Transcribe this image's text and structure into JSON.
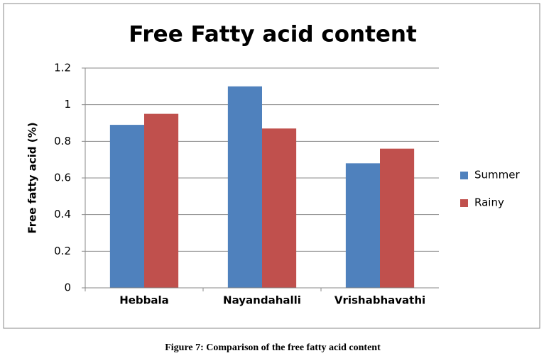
{
  "chart_data": {
    "type": "bar",
    "title": "Free Fatty acid content",
    "y_label": "Free fatty acid (%)",
    "categories": [
      "Hebbala",
      "Nayandahalli",
      "Vrishabhavathi"
    ],
    "series": [
      {
        "name": "Summer",
        "color": "#4f81bd",
        "values": [
          0.89,
          1.1,
          0.68
        ]
      },
      {
        "name": "Rainy",
        "color": "#c0504d",
        "values": [
          0.95,
          0.87,
          0.76
        ]
      }
    ],
    "ylim": [
      0,
      1.2
    ],
    "yticks": [
      0,
      0.2,
      0.4,
      0.6,
      0.8,
      1,
      1.2
    ],
    "grid": true,
    "legend": "right"
  },
  "caption": "Figure 7: Comparison of the free fatty acid content"
}
